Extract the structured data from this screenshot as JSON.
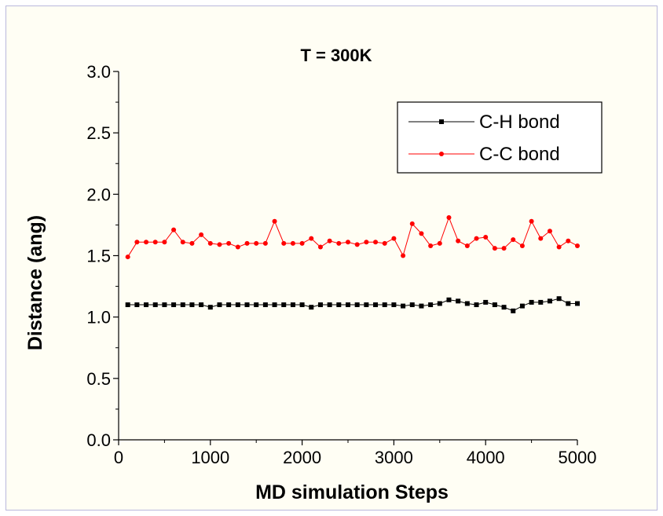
{
  "chart_data": {
    "type": "line",
    "title": "T = 300K",
    "xlabel": "MD simulation Steps",
    "ylabel": "Distance (ang)",
    "xlim": [
      0,
      5000
    ],
    "ylim": [
      0.0,
      3.0
    ],
    "xticks": [
      0,
      1000,
      2000,
      3000,
      4000,
      5000
    ],
    "xtick_labels": [
      "0",
      "1000",
      "2000",
      "3000",
      "4000",
      "5000"
    ],
    "yticks": [
      0.0,
      0.5,
      1.0,
      1.5,
      2.0,
      2.5,
      3.0
    ],
    "ytick_labels": [
      "0.0",
      "0.5",
      "1.0",
      "1.5",
      "2.0",
      "2.5",
      "3.0"
    ],
    "grid": false,
    "legend_position": "top-right",
    "x": [
      100,
      200,
      300,
      400,
      500,
      600,
      700,
      800,
      900,
      1000,
      1100,
      1200,
      1300,
      1400,
      1500,
      1600,
      1700,
      1800,
      1900,
      2000,
      2100,
      2200,
      2300,
      2400,
      2500,
      2600,
      2700,
      2800,
      2900,
      3000,
      3100,
      3200,
      3300,
      3400,
      3500,
      3600,
      3700,
      3800,
      3900,
      4000,
      4100,
      4200,
      4300,
      4400,
      4500,
      4600,
      4700,
      4800,
      4900,
      5000
    ],
    "series": [
      {
        "name": "C-H bond",
        "color": "#000000",
        "marker": "square",
        "values": [
          1.1,
          1.1,
          1.1,
          1.1,
          1.1,
          1.1,
          1.1,
          1.1,
          1.1,
          1.08,
          1.1,
          1.1,
          1.1,
          1.1,
          1.1,
          1.1,
          1.1,
          1.1,
          1.1,
          1.1,
          1.08,
          1.1,
          1.1,
          1.1,
          1.1,
          1.1,
          1.1,
          1.1,
          1.1,
          1.1,
          1.09,
          1.1,
          1.09,
          1.1,
          1.11,
          1.14,
          1.13,
          1.11,
          1.1,
          1.12,
          1.1,
          1.08,
          1.05,
          1.09,
          1.12,
          1.12,
          1.13,
          1.15,
          1.11,
          1.11
        ]
      },
      {
        "name": "C-C bond",
        "color": "#ff0000",
        "marker": "circle",
        "values": [
          1.49,
          1.61,
          1.61,
          1.61,
          1.61,
          1.71,
          1.61,
          1.6,
          1.67,
          1.6,
          1.59,
          1.6,
          1.57,
          1.6,
          1.6,
          1.6,
          1.78,
          1.6,
          1.6,
          1.6,
          1.64,
          1.57,
          1.62,
          1.6,
          1.61,
          1.59,
          1.61,
          1.61,
          1.6,
          1.64,
          1.5,
          1.76,
          1.68,
          1.58,
          1.6,
          1.81,
          1.62,
          1.58,
          1.64,
          1.65,
          1.56,
          1.56,
          1.63,
          1.58,
          1.78,
          1.64,
          1.7,
          1.57,
          1.62,
          1.58
        ]
      }
    ]
  }
}
